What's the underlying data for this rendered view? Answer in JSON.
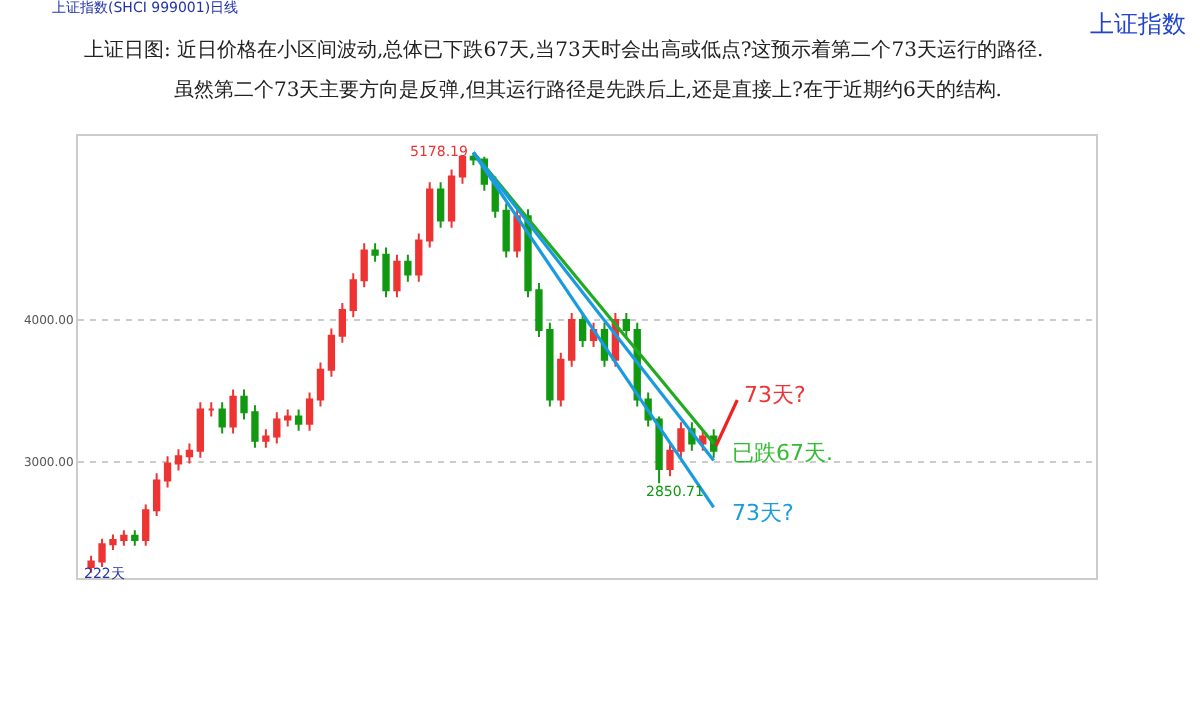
{
  "chart_data": {
    "type": "candlestick",
    "title": "上证日图: 近日价格在小区间波动,总体已下跌67天,当73天时会出高或低点?这预示着第二个73天运行的路径.",
    "subtitle": "虽然第二个73天主要方向是反弹,但其运行路径是先跌后上,还是直接上?在于近期约6天的结构.",
    "categories": [
      null,
      null,
      null,
      null,
      null,
      null,
      null,
      null,
      null,
      null,
      null,
      null,
      null,
      null,
      null,
      null,
      null,
      null,
      null,
      null,
      null,
      null,
      null,
      null,
      null,
      null,
      null,
      null,
      null,
      null,
      null,
      null,
      null,
      null,
      null,
      null,
      null,
      null,
      null,
      null,
      null,
      null,
      null,
      null,
      null,
      null,
      null,
      null,
      null,
      null,
      null,
      null,
      null,
      null,
      null,
      null,
      null,
      null
    ],
    "ohlc": [
      [
        2260,
        2340,
        2220,
        2300
      ],
      [
        2300,
        2460,
        2260,
        2420
      ],
      [
        2420,
        2490,
        2380,
        2450
      ],
      [
        2450,
        2520,
        2410,
        2480
      ],
      [
        2480,
        2520,
        2410,
        2450
      ],
      [
        2450,
        2700,
        2410,
        2660
      ],
      [
        2660,
        2920,
        2620,
        2870
      ],
      [
        2870,
        3040,
        2820,
        2990
      ],
      [
        2990,
        3090,
        2940,
        3040
      ],
      [
        3040,
        3130,
        2990,
        3080
      ],
      [
        3080,
        3420,
        3030,
        3370
      ],
      [
        3370,
        3420,
        3320,
        3370
      ],
      [
        3370,
        3420,
        3200,
        3250
      ],
      [
        3250,
        3510,
        3200,
        3460
      ],
      [
        3460,
        3510,
        3300,
        3350
      ],
      [
        3350,
        3400,
        3100,
        3150
      ],
      [
        3150,
        3230,
        3100,
        3180
      ],
      [
        3180,
        3350,
        3130,
        3300
      ],
      [
        3300,
        3370,
        3250,
        3320
      ],
      [
        3320,
        3370,
        3220,
        3270
      ],
      [
        3270,
        3490,
        3220,
        3440
      ],
      [
        3440,
        3700,
        3390,
        3650
      ],
      [
        3650,
        3940,
        3600,
        3890
      ],
      [
        3890,
        4120,
        3840,
        4070
      ],
      [
        4070,
        4330,
        4020,
        4280
      ],
      [
        4280,
        4540,
        4230,
        4490
      ],
      [
        4490,
        4540,
        4410,
        4460
      ],
      [
        4460,
        4510,
        4160,
        4210
      ],
      [
        4210,
        4460,
        4160,
        4410
      ],
      [
        4410,
        4460,
        4270,
        4320
      ],
      [
        4320,
        4610,
        4270,
        4560
      ],
      [
        4560,
        4970,
        4510,
        4920
      ],
      [
        4920,
        4970,
        4650,
        4700
      ],
      [
        4700,
        5060,
        4650,
        5010
      ],
      [
        5010,
        5160,
        4960,
        5150
      ],
      [
        5150,
        5178.19,
        5090,
        5130
      ],
      [
        5130,
        5150,
        4910,
        4960
      ],
      [
        4960,
        5010,
        4720,
        4770
      ],
      [
        4770,
        4820,
        4440,
        4490
      ],
      [
        4490,
        4780,
        4440,
        4730
      ],
      [
        4730,
        4780,
        4160,
        4210
      ],
      [
        4210,
        4260,
        3880,
        3930
      ],
      [
        3930,
        3980,
        3390,
        3440
      ],
      [
        3440,
        3770,
        3390,
        3720
      ],
      [
        3720,
        4050,
        3670,
        4000
      ],
      [
        4000,
        4050,
        3810,
        3860
      ],
      [
        3860,
        3980,
        3810,
        3930
      ],
      [
        3930,
        3980,
        3670,
        3720
      ],
      [
        3720,
        4050,
        3670,
        4000
      ],
      [
        4000,
        4050,
        3880,
        3930
      ],
      [
        3930,
        3980,
        3390,
        3440
      ],
      [
        3440,
        3490,
        3250,
        3300
      ],
      [
        3300,
        3320,
        2850.71,
        2950
      ],
      [
        2950,
        3130,
        2900,
        3080
      ],
      [
        3080,
        3280,
        3030,
        3230
      ],
      [
        3230,
        3280,
        3080,
        3130
      ],
      [
        3130,
        3230,
        3080,
        3180
      ],
      [
        3180,
        3230,
        3030,
        3080
      ]
    ],
    "series": [
      {
        "type": "line",
        "color": "#22aa22",
        "values": [
          null,
          null,
          null,
          null,
          null,
          null,
          null,
          null,
          null,
          null,
          null,
          null,
          null,
          null,
          null,
          null,
          null,
          null,
          null,
          null,
          null,
          null,
          null,
          null,
          null,
          null,
          null,
          null,
          null,
          null,
          null,
          null,
          null,
          null,
          null,
          5180,
          null,
          null,
          null,
          null,
          null,
          null,
          null,
          null,
          null,
          null,
          null,
          null,
          null,
          null,
          null,
          null,
          null,
          null,
          null,
          null,
          null,
          3130
        ]
      },
      {
        "type": "line",
        "color": "#1a9be0",
        "values": [
          null,
          null,
          null,
          null,
          null,
          null,
          null,
          null,
          null,
          null,
          null,
          null,
          null,
          null,
          null,
          null,
          null,
          null,
          null,
          null,
          null,
          null,
          null,
          null,
          null,
          null,
          null,
          null,
          null,
          null,
          null,
          null,
          null,
          null,
          null,
          5180,
          null,
          null,
          null,
          null,
          null,
          null,
          null,
          null,
          null,
          null,
          null,
          null,
          null,
          null,
          null,
          null,
          null,
          null,
          null,
          null,
          null,
          3010
        ]
      },
      {
        "type": "line",
        "color": "#1a9be0",
        "values": [
          null,
          null,
          null,
          null,
          null,
          null,
          null,
          null,
          null,
          null,
          null,
          null,
          null,
          null,
          null,
          null,
          null,
          null,
          null,
          null,
          null,
          null,
          null,
          null,
          null,
          null,
          null,
          null,
          null,
          null,
          null,
          null,
          null,
          null,
          null,
          5180,
          null,
          null,
          null,
          null,
          null,
          null,
          null,
          null,
          null,
          null,
          null,
          null,
          null,
          null,
          null,
          null,
          null,
          null,
          null,
          null,
          null,
          2680
        ]
      }
    ],
    "annotations": [
      "5178.19",
      "2850.71",
      "73天?",
      "已跌67天.",
      "73天?",
      "222天",
      "上证指数(SHCI 999001)日线",
      "上证指数"
    ],
    "ylim": [
      2183,
      5296
    ],
    "yticks": [
      {
        "value": 3000,
        "label": "3000.00"
      },
      {
        "value": 4000,
        "label": "4000.00"
      }
    ],
    "grid": "y"
  }
}
